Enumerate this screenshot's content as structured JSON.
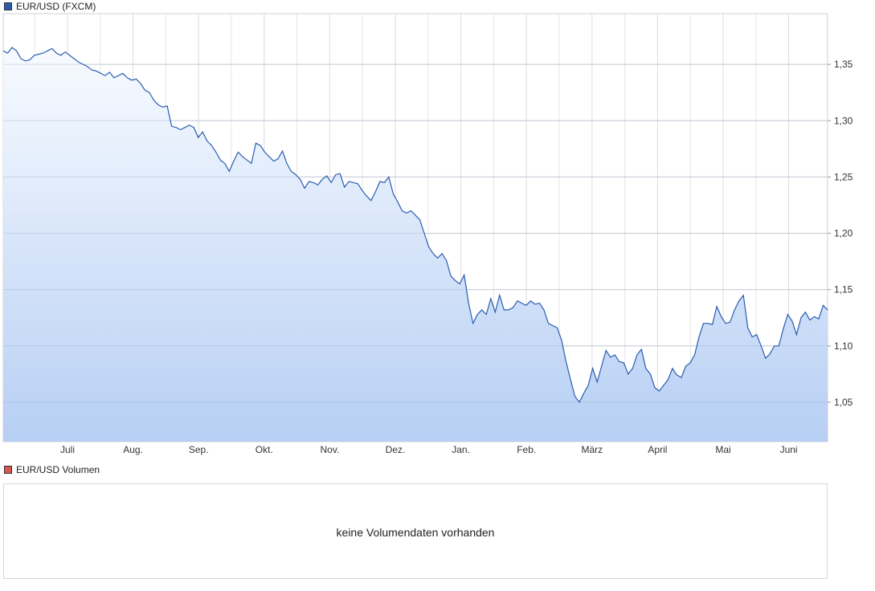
{
  "legend_main": {
    "label": "EUR/USD (FXCM)",
    "color": "#2a5db0"
  },
  "legend_volume": {
    "label": "EUR/USD Volumen",
    "color": "#d9534f"
  },
  "volume_panel": {
    "message": "keine Volumendaten vorhanden"
  },
  "chart_data": {
    "type": "area",
    "series": [
      {
        "values": [
          1.362,
          1.36,
          1.365,
          1.362,
          1.355,
          1.353,
          1.354,
          1.358,
          1.359,
          1.36,
          1.362,
          1.364,
          1.36,
          1.358,
          1.361,
          1.358,
          1.355,
          1.352,
          1.35,
          1.348,
          1.345,
          1.344,
          1.342,
          1.34,
          1.343,
          1.338,
          1.34,
          1.342,
          1.338,
          1.336,
          1.337,
          1.333,
          1.327,
          1.325,
          1.318,
          1.314,
          1.312,
          1.313,
          1.295,
          1.294,
          1.292,
          1.294,
          1.296,
          1.294,
          1.285,
          1.29,
          1.282,
          1.278,
          1.272,
          1.265,
          1.262,
          1.255,
          1.264,
          1.272,
          1.268,
          1.265,
          1.262,
          1.28,
          1.278,
          1.272,
          1.268,
          1.264,
          1.266,
          1.273,
          1.262,
          1.255,
          1.252,
          1.248,
          1.24,
          1.246,
          1.245,
          1.243,
          1.248,
          1.251,
          1.245,
          1.252,
          1.253,
          1.241,
          1.246,
          1.245,
          1.244,
          1.238,
          1.233,
          1.229,
          1.237,
          1.246,
          1.245,
          1.25,
          1.235,
          1.228,
          1.22,
          1.218,
          1.22,
          1.216,
          1.212,
          1.2,
          1.188,
          1.182,
          1.178,
          1.182,
          1.176,
          1.162,
          1.158,
          1.155,
          1.163,
          1.138,
          1.12,
          1.128,
          1.132,
          1.128,
          1.142,
          1.13,
          1.145,
          1.132,
          1.132,
          1.134,
          1.14,
          1.138,
          1.136,
          1.14,
          1.137,
          1.138,
          1.132,
          1.12,
          1.118,
          1.116,
          1.105,
          1.086,
          1.07,
          1.055,
          1.05,
          1.058,
          1.065,
          1.08,
          1.068,
          1.082,
          1.096,
          1.09,
          1.092,
          1.086,
          1.085,
          1.075,
          1.08,
          1.092,
          1.097,
          1.08,
          1.075,
          1.063,
          1.06,
          1.065,
          1.07,
          1.08,
          1.074,
          1.072,
          1.082,
          1.085,
          1.092,
          1.108,
          1.12,
          1.12,
          1.119,
          1.135,
          1.126,
          1.12,
          1.121,
          1.132,
          1.14,
          1.145,
          1.116,
          1.108,
          1.11,
          1.1,
          1.089,
          1.093,
          1.1,
          1.1,
          1.115,
          1.128,
          1.122,
          1.11,
          1.125,
          1.13,
          1.123,
          1.126,
          1.124,
          1.136,
          1.132
        ]
      }
    ],
    "x_tick_labels": [
      "Juli",
      "Aug.",
      "Sep.",
      "Okt.",
      "Nov.",
      "Dez.",
      "Jan.",
      "Feb.",
      "März",
      "April",
      "Mai",
      "Juni"
    ],
    "y_ticks": [
      1.05,
      1.1,
      1.15,
      1.2,
      1.25,
      1.3,
      1.35
    ],
    "y_tick_labels": [
      "1,05",
      "1,10",
      "1,15",
      "1,20",
      "1,25",
      "1,30",
      "1,35"
    ],
    "ylim": [
      1.015,
      1.395
    ],
    "grid": true,
    "y_axis_side": "right",
    "line_color": "#2a5db0",
    "fill_color_top": "#f8fbff",
    "fill_color_bottom": "#b7cff4"
  }
}
